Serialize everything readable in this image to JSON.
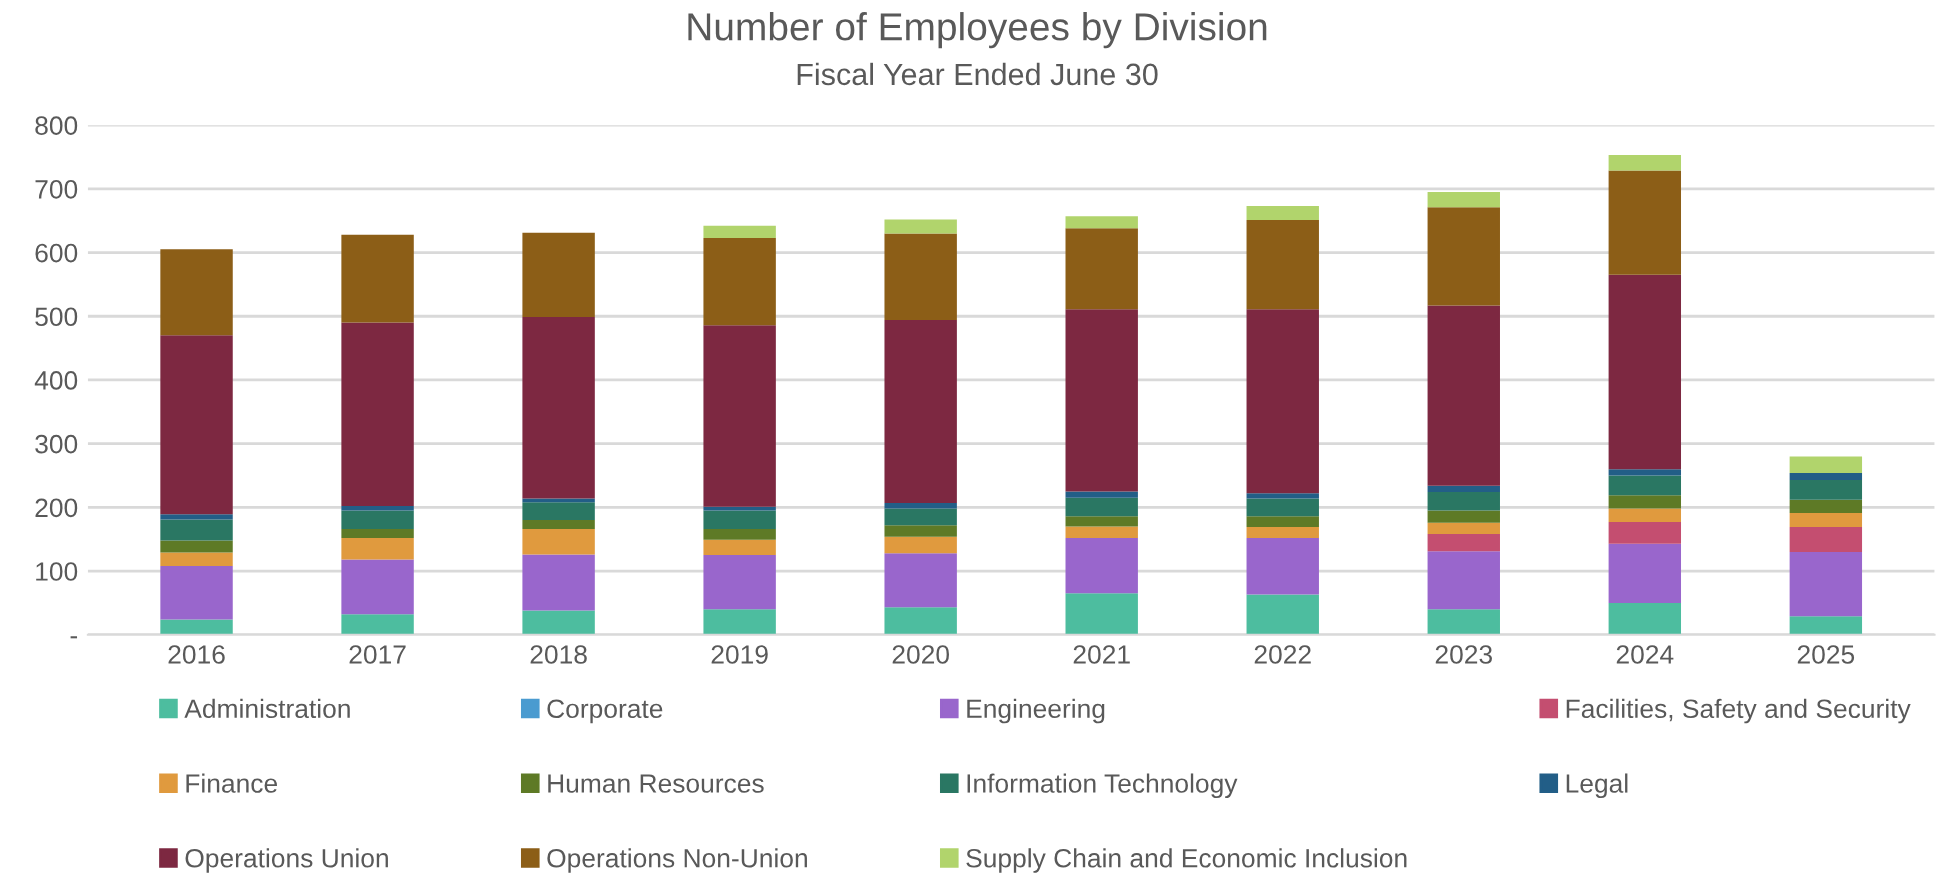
{
  "chart_data": {
    "type": "bar",
    "title": "Number of Employees by Division",
    "subtitle": "Fiscal Year Ended June 30",
    "stacked": true,
    "categories": [
      "2016",
      "2017",
      "2018",
      "2019",
      "2020",
      "2021",
      "2022",
      "2023",
      "2024",
      "2025"
    ],
    "series": [
      {
        "name": "Administration",
        "color": "#4dbd9f",
        "values": [
          24,
          32,
          38,
          40,
          43,
          65,
          63,
          40,
          50,
          29
        ]
      },
      {
        "name": "Corporate",
        "color": "#4a9bd0",
        "values": [
          null,
          null,
          null,
          null,
          null,
          null,
          null,
          null,
          null,
          null
        ]
      },
      {
        "name": "Engineering",
        "color": "#9966cc",
        "values": [
          84,
          86,
          88,
          85,
          85,
          87,
          89,
          91,
          93,
          101
        ]
      },
      {
        "name": "Facilities, Safety and Security",
        "color": "#c44e70",
        "values": [
          0,
          0,
          0,
          0,
          0,
          0,
          0,
          27,
          34,
          39
        ]
      },
      {
        "name": "Finance",
        "color": "#e09a3e",
        "values": [
          21,
          34,
          40,
          24,
          26,
          18,
          17,
          18,
          21,
          22
        ]
      },
      {
        "name": "Human Resources",
        "color": "#5e7a26",
        "values": [
          19,
          14,
          14,
          17,
          18,
          16,
          17,
          19,
          21,
          21
        ]
      },
      {
        "name": "Information Technology",
        "color": "#2a7763",
        "values": [
          33,
          29,
          28,
          29,
          26,
          29,
          28,
          29,
          31,
          31
        ]
      },
      {
        "name": "Legal",
        "color": "#225e87",
        "values": [
          8,
          7,
          6,
          6,
          9,
          10,
          8,
          10,
          10,
          11
        ]
      },
      {
        "name": "Operations Union",
        "color": "#7d2841",
        "values": [
          281,
          288,
          285,
          285,
          287,
          286,
          289,
          283,
          305,
          0
        ]
      },
      {
        "name": "Operations Non-Union",
        "color": "#8c5e17",
        "values": [
          135,
          138,
          132,
          137,
          136,
          127,
          140,
          154,
          164,
          0
        ]
      },
      {
        "name": "Supply Chain and Economic Inclusion",
        "color": "#b1d46c",
        "values": [
          0,
          0,
          0,
          19,
          22,
          19,
          22,
          24,
          24,
          26
        ]
      }
    ],
    "ylim": [
      0,
      800
    ],
    "yticks": [
      {
        "value": 0,
        "label": "-"
      },
      100,
      200,
      300,
      400,
      500,
      600,
      700,
      800
    ],
    "grid": "y",
    "legend": "bottom"
  }
}
